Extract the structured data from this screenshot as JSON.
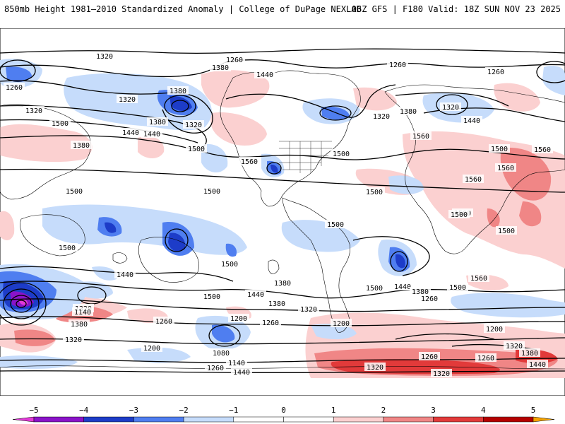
{
  "header": {
    "title_left": "850mb Height 1981–2010 Standardized Anomaly | College of DuPage NEXLAB",
    "title_right": "06Z GFS | F180 Valid: 18Z SUN NOV 23 2025"
  },
  "colors": {
    "neg5": "#e23ad8",
    "neg4": "#8a13c9",
    "neg3": "#1d3cc8",
    "neg2": "#4f7ef0",
    "neg1": "#c6dcfb",
    "pos1": "#fbd0d0",
    "pos2": "#f08686",
    "pos3": "#e23a3a",
    "pos4": "#b40000",
    "pos5": "#f5a300",
    "contour": "#000000",
    "coast": "#000000"
  },
  "contour_labels": [
    "1320",
    "1260",
    "1380",
    "1440",
    "1260",
    "1320",
    "1380",
    "1320",
    "1380",
    "1260",
    "1260",
    "1320",
    "1440",
    "1320",
    "1380",
    "1500",
    "1500",
    "1440",
    "1380",
    "1560",
    "1320",
    "1440",
    "1560",
    "1500",
    "1500",
    "1560",
    "1500",
    "1560",
    "1500",
    "1560",
    "1500",
    "1500",
    "1500",
    "1500",
    "1500",
    "1500",
    "1500",
    "1440",
    "1440",
    "1380",
    "1500",
    "1440",
    "1380",
    "1320",
    "1380",
    "1260",
    "1320",
    "1140",
    "1200",
    "1260",
    "1380",
    "1320",
    "1260",
    "1200",
    "1080",
    "1140",
    "1200",
    "1260",
    "1560",
    "1500",
    "1260",
    "1200",
    "1320",
    "1380",
    "1260",
    "1440",
    "1320",
    "1320",
    "1440",
    "1500"
  ],
  "colorbar": {
    "ticks": [
      "−5",
      "−4",
      "−3",
      "−2",
      "−1",
      "0",
      "1",
      "2",
      "3",
      "4",
      "5"
    ]
  }
}
